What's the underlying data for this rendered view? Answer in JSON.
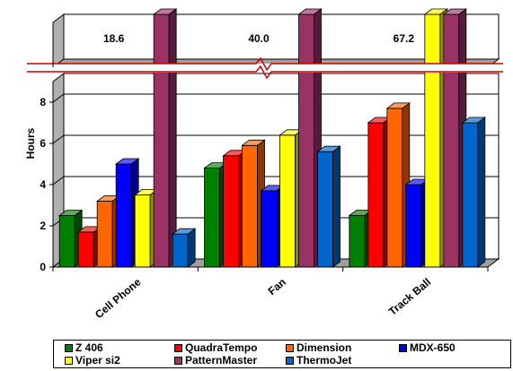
{
  "chart_data": {
    "type": "bar",
    "title": "",
    "xlabel": "",
    "ylabel": "Hours",
    "ylim": [
      0,
      9
    ],
    "axis_break": true,
    "y_ticks": [
      "0",
      "2",
      "4",
      "6",
      "8"
    ],
    "categories": [
      "Cell Phone",
      "Fan",
      "Track Ball"
    ],
    "value_labels": [
      "18.6",
      "40.0",
      "67.2"
    ],
    "value_label_series": "PatternMaster",
    "series": [
      {
        "name": "Z 406",
        "color": "#008000",
        "values": [
          2.5,
          4.8,
          2.5
        ]
      },
      {
        "name": "QuadraTempo",
        "color": "#ff0000",
        "values": [
          1.7,
          5.4,
          7.0
        ]
      },
      {
        "name": "Dimension",
        "color": "#ff6600",
        "values": [
          3.2,
          5.9,
          7.7
        ]
      },
      {
        "name": "MDX-650",
        "color": "#0000ff",
        "values": [
          5.0,
          3.7,
          4.0
        ]
      },
      {
        "name": "Viper si2",
        "color": "#ffff00",
        "values": [
          3.5,
          6.4,
          9.9
        ]
      },
      {
        "name": "PatternMaster",
        "color": "#993366",
        "values": [
          18.6,
          40.0,
          67.2
        ]
      },
      {
        "name": "ThermoJet",
        "color": "#0066cc",
        "values": [
          1.6,
          5.6,
          7.0
        ]
      }
    ],
    "legend_position": "bottom",
    "grid": true
  }
}
